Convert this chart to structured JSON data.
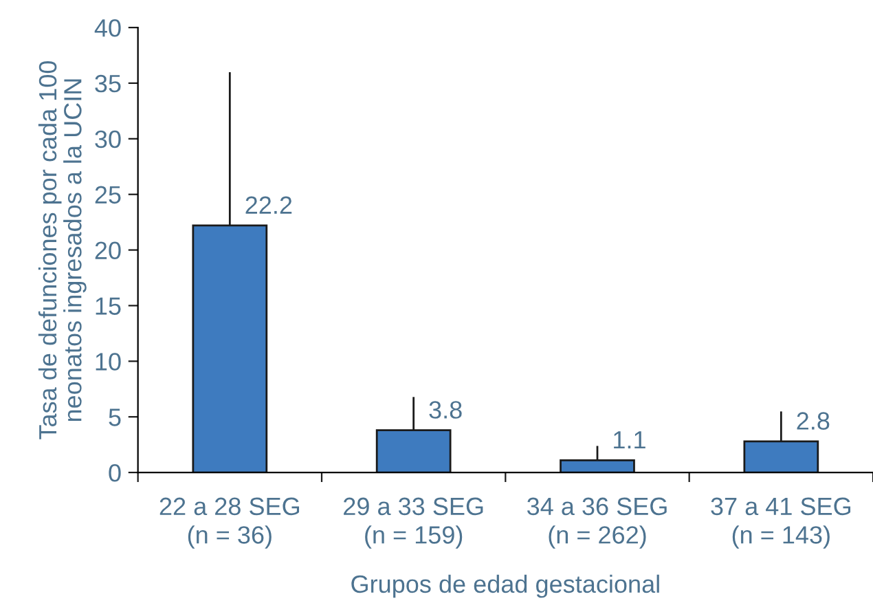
{
  "chart_data": {
    "type": "bar",
    "xlabel": "Grupos de edad gestacional",
    "ylabel": "Tasa de defunciones por cada 100\nneonatos ingresados a la UCIN",
    "categories": [
      "22 a 28 SEG\n(n = 36)",
      "29 a 33 SEG\n(n = 159)",
      "34 a 36 SEG\n(n = 262)",
      "37 a 41 SEG\n(n = 143)"
    ],
    "values": [
      22.2,
      3.8,
      1.1,
      2.8
    ],
    "errors": [
      [
        22.2,
        35.9
      ],
      [
        3.8,
        6.7
      ],
      [
        1.1,
        2.3
      ],
      [
        2.8,
        5.4
      ]
    ],
    "color": "#3e7bbf",
    "data_labels": true,
    "ylim": [
      0,
      40
    ],
    "yticks": [
      0,
      5,
      10,
      15,
      20,
      25,
      30,
      35,
      40
    ],
    "grid": false
  }
}
